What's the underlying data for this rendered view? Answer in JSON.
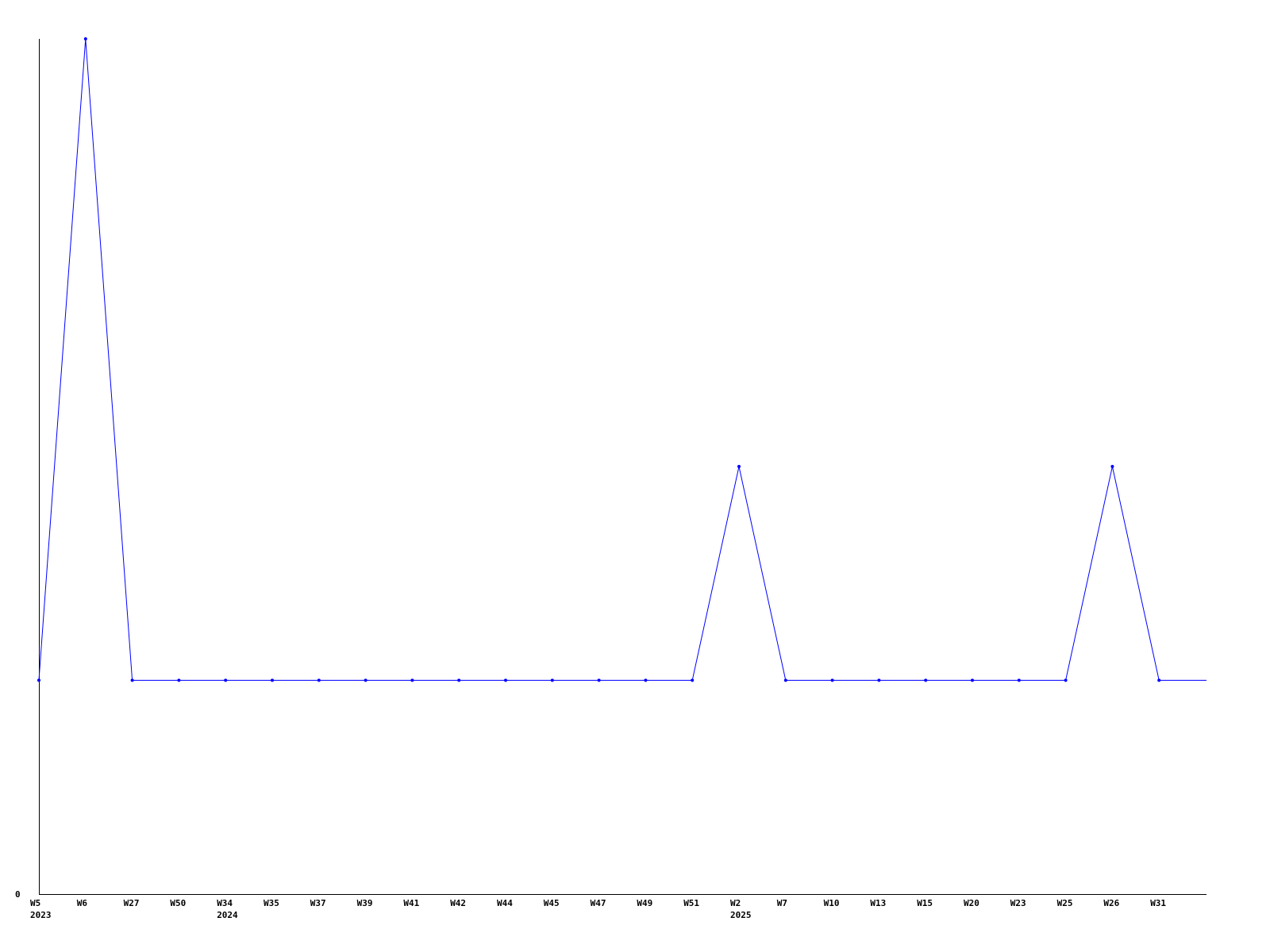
{
  "chart_data": {
    "type": "line",
    "title": "",
    "xlabel": "",
    "ylabel": "",
    "categories": [
      "W5",
      "W6",
      "W27",
      "W50",
      "W34",
      "W35",
      "W37",
      "W39",
      "W41",
      "W42",
      "W44",
      "W45",
      "W47",
      "W49",
      "W51",
      "W2",
      "W7",
      "W10",
      "W13",
      "W15",
      "W20",
      "W23",
      "W25",
      "W26",
      "W31"
    ],
    "year_labels": [
      {
        "index": 0,
        "label": "2023"
      },
      {
        "index": 4,
        "label": "2024"
      },
      {
        "index": 15,
        "label": "2025"
      }
    ],
    "y_tick_labels": [
      "0"
    ],
    "ylim": [
      0,
      4
    ],
    "grid": false,
    "series": [
      {
        "values": [
          1,
          4,
          1,
          1,
          1,
          1,
          1,
          1,
          1,
          1,
          1,
          1,
          1,
          1,
          1,
          2,
          1,
          1,
          1,
          1,
          1,
          1,
          1,
          2,
          1
        ],
        "color": "#0000ff"
      }
    ]
  }
}
